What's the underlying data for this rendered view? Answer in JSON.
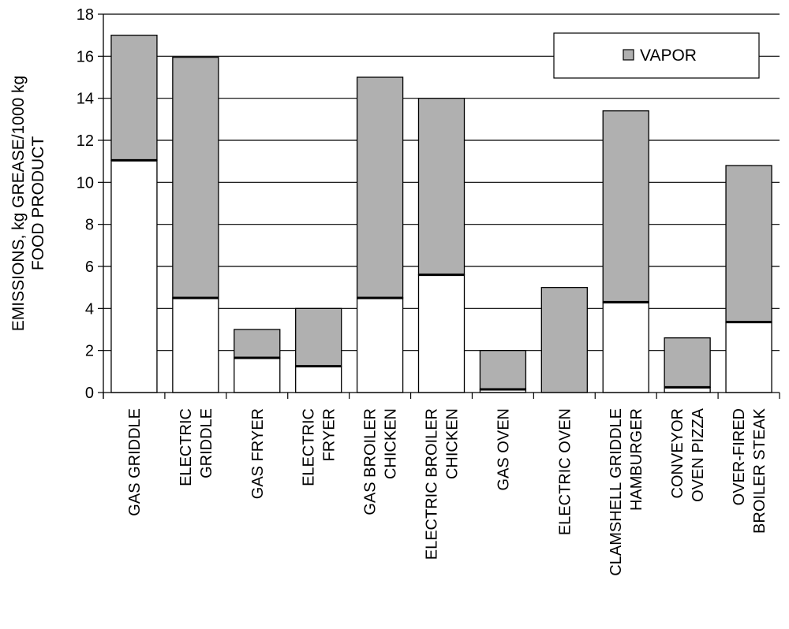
{
  "chart_data": {
    "type": "bar",
    "stacked": true,
    "categories": [
      [
        "GAS GRIDDLE"
      ],
      [
        "ELECTRIC",
        "GRIDDLE"
      ],
      [
        "GAS FRYER"
      ],
      [
        "ELECTRIC",
        "FRYER"
      ],
      [
        "GAS BROILER",
        "CHICKEN"
      ],
      [
        "ELECTRIC BROILER",
        "CHICKEN"
      ],
      [
        "GAS OVEN"
      ],
      [
        "ELECTRIC OVEN"
      ],
      [
        "CLAMSHELL GRIDDLE",
        "HAMBURGER"
      ],
      [
        "CONVEYOR",
        "OVEN PIZZA"
      ],
      [
        "OVER-FIRED",
        "BROILER STEAK"
      ]
    ],
    "series": [
      {
        "values": [
          11.05,
          4.5,
          1.65,
          1.25,
          4.5,
          5.6,
          0.15,
          0.0,
          4.3,
          0.25,
          3.35
        ],
        "color": "#ffffff"
      },
      {
        "name": "VAPOR",
        "values": [
          5.95,
          11.45,
          1.35,
          2.75,
          10.5,
          8.4,
          1.85,
          5.0,
          9.1,
          2.35,
          7.45
        ],
        "color": "#b0b0b0"
      }
    ],
    "ylabel": [
      "EMISSIONS, kg GREASE/1000 kg",
      "FOOD PRODUCT"
    ],
    "ylim": [
      0,
      18
    ],
    "yticks": [
      "0",
      "2",
      "4",
      "6",
      "8",
      "10",
      "12",
      "14",
      "16",
      "18"
    ],
    "grid": true,
    "legend_position": "top-right"
  }
}
